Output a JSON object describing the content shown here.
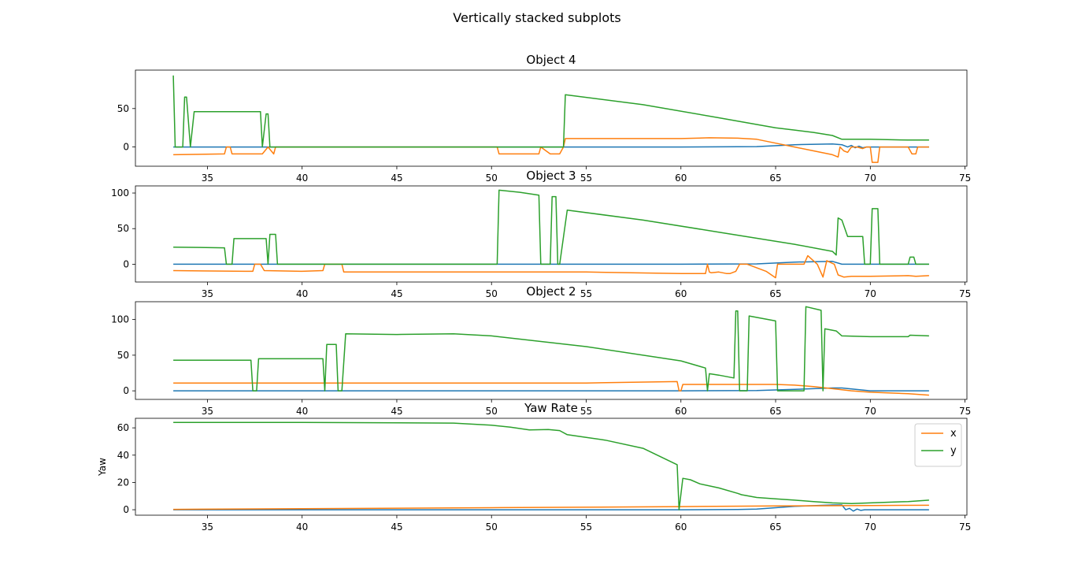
{
  "figure": {
    "suptitle": "Vertically stacked subplots"
  },
  "colors": {
    "blue": "#1f77b4",
    "orange": "#ff7f0e",
    "green": "#2ca02c"
  },
  "chart_data": [
    {
      "type": "line",
      "title": "Object 4",
      "xlabel": "",
      "ylabel": "",
      "xlim": [
        31.2,
        75.1
      ],
      "ylim": [
        -25,
        100
      ],
      "xticks": [
        35,
        40,
        45,
        50,
        55,
        60,
        65,
        70,
        75
      ],
      "yticks": [
        0,
        50
      ],
      "grid": false,
      "series": [
        {
          "color": "blue",
          "x": [
            33.2,
            60,
            64,
            66,
            68,
            68.5,
            68.8,
            69,
            69.2,
            69.4,
            69.6,
            69.8,
            70,
            72,
            73.1
          ],
          "y": [
            0,
            0,
            0.5,
            3,
            4,
            3,
            0,
            2,
            -1,
            1,
            -1,
            0,
            0,
            0,
            0
          ]
        },
        {
          "color": "orange",
          "x": [
            33.2,
            35.9,
            36,
            36.2,
            36.3,
            37.9,
            38.2,
            38.5,
            38.6,
            50.3,
            50.4,
            52.5,
            52.6,
            53.1,
            53.6,
            53.8,
            53.9,
            56,
            60,
            61.5,
            63,
            64,
            65,
            66,
            67,
            68,
            68.3,
            68.4,
            68.6,
            68.8,
            69,
            69.3,
            69.6,
            69.8,
            70,
            70.1,
            70.4,
            70.5,
            72,
            72.2,
            72.4,
            72.5,
            73.1
          ],
          "y": [
            -10,
            -9,
            0,
            0,
            -9,
            -9,
            0,
            -9,
            0,
            0,
            -9,
            -9,
            0,
            -9,
            -9,
            0,
            11,
            11,
            11,
            12,
            11.5,
            10,
            5,
            0,
            -5,
            -10,
            -13,
            0,
            -5,
            -7,
            0,
            0,
            -2,
            0,
            0,
            -20,
            -20,
            0,
            0,
            -9,
            -9,
            0,
            0
          ]
        },
        {
          "color": "green",
          "x": [
            33.2,
            33.3,
            33.4,
            33.7,
            33.8,
            33.9,
            34.1,
            34.3,
            37.8,
            37.9,
            38.1,
            38.2,
            38.3,
            38.4,
            53.8,
            53.9,
            58,
            62,
            65,
            66,
            67,
            68,
            68.5,
            69,
            70,
            72,
            73.1
          ],
          "y": [
            93,
            0,
            0,
            0,
            65,
            65,
            0,
            46,
            46,
            0,
            43,
            43,
            0,
            0,
            0,
            68,
            55,
            38,
            25,
            22,
            19,
            15,
            10,
            10,
            10,
            9,
            9
          ]
        }
      ]
    },
    {
      "type": "line",
      "title": "Object 3",
      "xlabel": "",
      "ylabel": "",
      "xlim": [
        31.2,
        75.1
      ],
      "ylim": [
        -25,
        110
      ],
      "xticks": [
        35,
        40,
        45,
        50,
        55,
        60,
        65,
        70,
        75
      ],
      "yticks": [
        0,
        50,
        100
      ],
      "grid": false,
      "series": [
        {
          "color": "blue",
          "x": [
            33.2,
            60,
            64,
            66,
            68,
            68.5,
            70,
            73.1
          ],
          "y": [
            0,
            0,
            0.5,
            3,
            4,
            0,
            0,
            0
          ]
        },
        {
          "color": "orange",
          "x": [
            33.2,
            37,
            37.4,
            37.5,
            37.8,
            38.0,
            40,
            41.1,
            41.2,
            42.1,
            42.2,
            50,
            55,
            60,
            61.3,
            61.4,
            61.5,
            61.6,
            62,
            62.4,
            62.6,
            62.9,
            63.1,
            63.3,
            63.5,
            64,
            64.5,
            65,
            65.1,
            65.3,
            66.5,
            66.7,
            67.2,
            67.5,
            67.7,
            68.1,
            68.3,
            68.6,
            69,
            70,
            72,
            72.4,
            73.1
          ],
          "y": [
            -9,
            -10,
            -10,
            0,
            0,
            -9,
            -10,
            -9,
            0,
            0,
            -11,
            -11,
            -11,
            -13,
            -13,
            0,
            -11,
            -12,
            -11,
            -13,
            -13,
            -10,
            0,
            0,
            0,
            -5,
            -10,
            -19,
            0,
            0,
            0,
            12,
            0,
            -18,
            5,
            0,
            -15,
            -18,
            -17,
            -17,
            -16,
            -17,
            -16
          ]
        },
        {
          "color": "green",
          "x": [
            33.2,
            35.9,
            36.0,
            36.3,
            36.4,
            38.1,
            38.2,
            38.3,
            38.6,
            38.7,
            50.3,
            50.4,
            51.5,
            52.5,
            52.6,
            53.1,
            53.2,
            53.4,
            53.5,
            53.6,
            54,
            58,
            62,
            66,
            68,
            68.2,
            68.3,
            68.5,
            68.8,
            69.6,
            69.7,
            70,
            70.1,
            70.4,
            70.5,
            72,
            72.1,
            72.3,
            72.4,
            73.1
          ],
          "y": [
            24,
            23,
            0,
            0,
            36,
            36,
            0,
            42,
            42,
            0,
            0,
            104,
            101,
            97,
            0,
            0,
            95,
            95,
            0,
            0,
            76,
            62,
            45,
            28,
            18,
            13,
            65,
            62,
            39,
            39,
            0,
            0,
            78,
            78,
            0,
            0,
            10,
            10,
            0,
            0
          ]
        }
      ]
    },
    {
      "type": "line",
      "title": "Object 2",
      "xlabel": "",
      "ylabel": "",
      "xlim": [
        31.2,
        75.1
      ],
      "ylim": [
        -12,
        125
      ],
      "xticks": [
        35,
        40,
        45,
        50,
        55,
        60,
        65,
        70,
        75
      ],
      "yticks": [
        0,
        50,
        100
      ],
      "grid": false,
      "series": [
        {
          "color": "blue",
          "x": [
            33.2,
            60,
            64,
            66,
            68,
            68.5,
            70,
            73.1
          ],
          "y": [
            0,
            0,
            0.5,
            2,
            4,
            4,
            0,
            0
          ]
        },
        {
          "color": "orange",
          "x": [
            33.2,
            50,
            55,
            59.8,
            59.9,
            60.0,
            60.1,
            63,
            65,
            66,
            67,
            68,
            69,
            70,
            72,
            73.1
          ],
          "y": [
            11,
            11,
            11,
            13,
            0,
            0,
            9,
            9,
            9,
            8,
            6,
            3,
            0,
            -2,
            -4,
            -6
          ]
        },
        {
          "color": "green",
          "x": [
            33.2,
            37.3,
            37.4,
            37.6,
            37.7,
            41.1,
            41.2,
            41.3,
            41.8,
            41.9,
            42.1,
            42.3,
            45,
            48,
            50,
            55,
            60,
            61.3,
            61.4,
            61.5,
            62,
            62.8,
            62.9,
            63.0,
            63.1,
            63.5,
            63.6,
            65,
            65.1,
            65.4,
            66.5,
            66.6,
            67.4,
            67.5,
            67.6,
            68.2,
            68.5,
            70,
            72,
            72.1,
            73.1
          ],
          "y": [
            43,
            43,
            0,
            0,
            45,
            45,
            0,
            65,
            65,
            0,
            0,
            80,
            79,
            80,
            77,
            62,
            42,
            32,
            0,
            24,
            22,
            18,
            112,
            112,
            0,
            0,
            105,
            98,
            0,
            0,
            0,
            118,
            113,
            0,
            87,
            84,
            77,
            76,
            76,
            78,
            77
          ]
        }
      ]
    },
    {
      "type": "line",
      "title": "Yaw Rate",
      "xlabel": "",
      "ylabel": "Yaw",
      "xlim": [
        31.2,
        75.1
      ],
      "ylim": [
        -4,
        67
      ],
      "xticks": [
        35,
        40,
        45,
        50,
        55,
        60,
        65,
        70,
        75
      ],
      "yticks": [
        0,
        20,
        40,
        60
      ],
      "grid": false,
      "legend": {
        "position": "top-right",
        "entries": [
          "x",
          "y"
        ]
      },
      "series": [
        {
          "color": "blue",
          "x": [
            33.2,
            60,
            63,
            64,
            65,
            66,
            67,
            68,
            68.5,
            68.7,
            68.9,
            69.1,
            69.3,
            69.5,
            69.7,
            70,
            73.1
          ],
          "y": [
            0,
            0,
            0.2,
            0.5,
            1.5,
            2.5,
            3,
            3.5,
            3.5,
            0,
            1,
            -1,
            0.5,
            -0.5,
            0,
            0,
            0
          ]
        },
        {
          "name": "x",
          "color": "orange",
          "x": [
            33.2,
            40,
            50,
            60,
            65,
            70,
            73.1
          ],
          "y": [
            0.3,
            0.8,
            1.5,
            2.3,
            2.8,
            3.1,
            3.3
          ]
        },
        {
          "name": "y",
          "color": "green",
          "x": [
            33.2,
            40,
            48,
            50,
            51,
            52,
            53,
            53.6,
            54,
            55,
            56,
            58,
            59.8,
            59.9,
            60.1,
            60.5,
            61,
            62,
            63,
            63.2,
            64,
            65,
            66,
            67,
            68,
            69,
            70,
            71,
            72,
            73.1
          ],
          "y": [
            64,
            64,
            63.5,
            62,
            60.5,
            58.5,
            58.8,
            58,
            55,
            53,
            51,
            45,
            33,
            0,
            23,
            22,
            19,
            16,
            12,
            11,
            9,
            8,
            7,
            6,
            5,
            4.5,
            5,
            5.5,
            6,
            7
          ]
        }
      ]
    }
  ]
}
